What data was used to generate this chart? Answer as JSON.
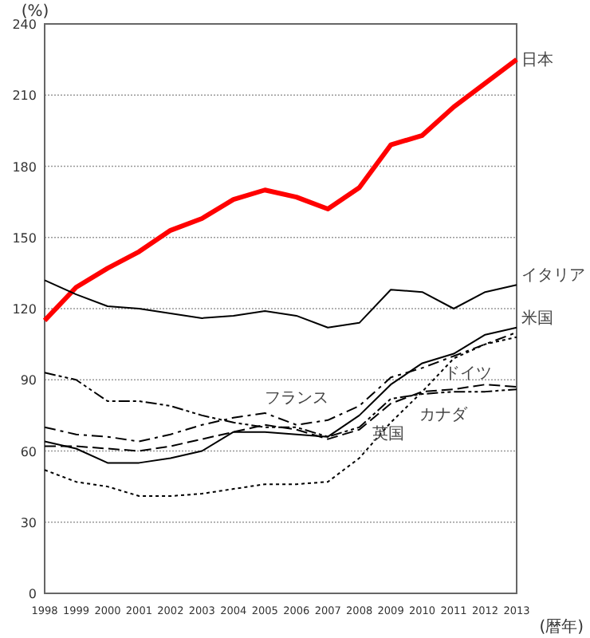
{
  "chart_data": {
    "type": "line",
    "ylabel": "(%)",
    "xlabel": "(暦年)",
    "categories": [
      "1998",
      "1999",
      "2000",
      "2001",
      "2002",
      "2003",
      "2004",
      "2005",
      "2006",
      "2007",
      "2008",
      "2009",
      "2010",
      "2011",
      "2012",
      "2013"
    ],
    "ylim": [
      0,
      240
    ],
    "yticks": [
      0,
      30,
      60,
      90,
      120,
      150,
      180,
      210,
      240
    ],
    "grid": "y",
    "series": [
      {
        "name": "日本",
        "color": "#ff0000",
        "line_style": "solid",
        "values": [
          115,
          129,
          137,
          144,
          153,
          158,
          166,
          170,
          167,
          162,
          171,
          189,
          193,
          205,
          215,
          225
        ]
      },
      {
        "name": "イタリア",
        "color": "#000000",
        "line_style": "solid",
        "values": [
          132,
          126,
          121,
          120,
          118,
          116,
          117,
          119,
          117,
          112,
          114,
          128,
          127,
          120,
          127,
          130
        ]
      },
      {
        "name": "米国",
        "color": "#000000",
        "line_style": "solid",
        "values": [
          64,
          61,
          55,
          55,
          57,
          60,
          68,
          68,
          67,
          66,
          75,
          88,
          97,
          101,
          109,
          112
        ]
      },
      {
        "name": "ドイツ",
        "color": "#000000",
        "line_style": "dashed",
        "values": [
          62,
          62,
          61,
          60,
          62,
          65,
          68,
          71,
          69,
          65,
          69,
          80,
          85,
          86,
          88,
          87
        ]
      },
      {
        "name": "フランス",
        "color": "#000000",
        "line_style": "dashdot",
        "values": [
          70,
          67,
          66,
          64,
          67,
          71,
          74,
          76,
          71,
          73,
          79,
          91,
          95,
          100,
          105,
          110
        ]
      },
      {
        "name": "カナダ",
        "color": "#000000",
        "line_style": "dashdotdot",
        "values": [
          93,
          90,
          81,
          81,
          79,
          75,
          72,
          70,
          70,
          66,
          70,
          82,
          84,
          85,
          85,
          86
        ]
      },
      {
        "name": "英国",
        "color": "#000000",
        "line_style": "dotted",
        "values": [
          52,
          47,
          45,
          41,
          41,
          42,
          44,
          46,
          46,
          47,
          57,
          72,
          85,
          99,
          105,
          108
        ]
      }
    ]
  }
}
